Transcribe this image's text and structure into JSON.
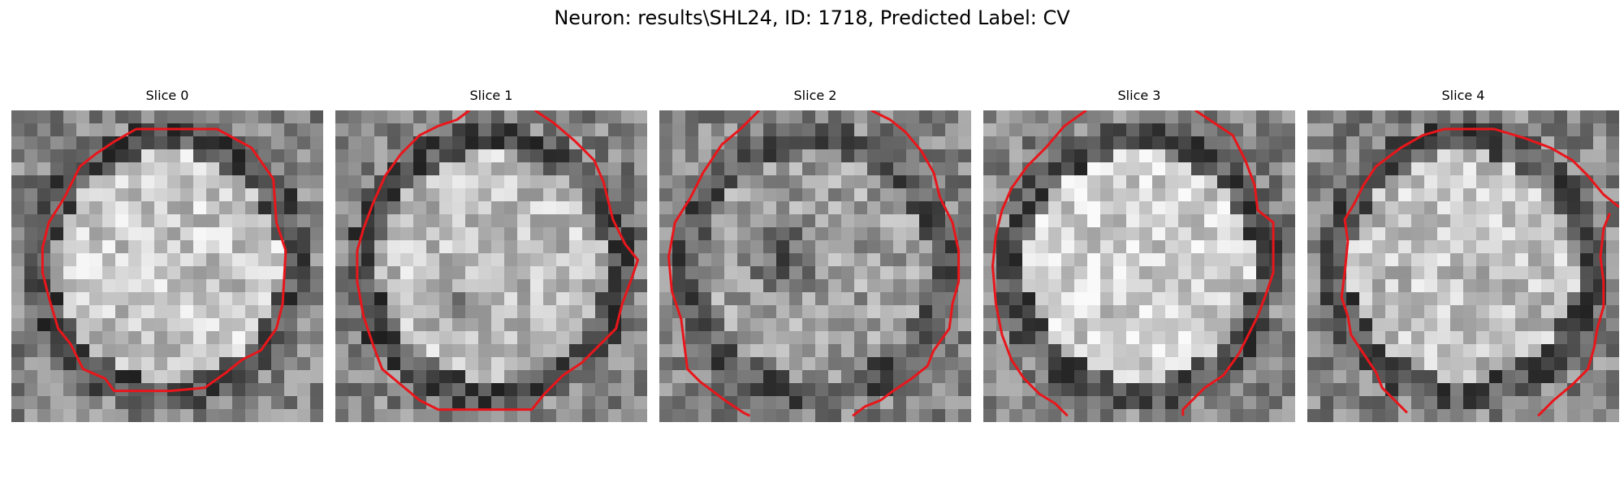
{
  "figure": {
    "title": "Neuron: results\\SHL24, ID: 1718, Predicted Label: CV",
    "contour_color": "#e8161b",
    "panels": [
      {
        "title": "Slice 0",
        "seed": 11,
        "center_brightness": 0.78,
        "ring_darkness": 0.55,
        "dark_blob": null,
        "contour": [
          [
            0.4,
            0.06
          ],
          [
            0.66,
            0.06
          ],
          [
            0.77,
            0.12
          ],
          [
            0.84,
            0.22
          ],
          [
            0.85,
            0.36
          ],
          [
            0.88,
            0.45
          ],
          [
            0.87,
            0.62
          ],
          [
            0.85,
            0.7
          ],
          [
            0.8,
            0.77
          ],
          [
            0.74,
            0.8
          ],
          [
            0.69,
            0.84
          ],
          [
            0.62,
            0.89
          ],
          [
            0.51,
            0.9
          ],
          [
            0.33,
            0.9
          ],
          [
            0.3,
            0.86
          ],
          [
            0.23,
            0.83
          ],
          [
            0.19,
            0.75
          ],
          [
            0.15,
            0.7
          ],
          [
            0.12,
            0.6
          ],
          [
            0.1,
            0.52
          ],
          [
            0.1,
            0.44
          ],
          [
            0.12,
            0.36
          ],
          [
            0.17,
            0.28
          ],
          [
            0.22,
            0.18
          ],
          [
            0.27,
            0.14
          ],
          [
            0.33,
            0.1
          ],
          [
            0.4,
            0.06
          ]
        ],
        "closed": true
      },
      {
        "title": "Slice 1",
        "seed": 23,
        "center_brightness": 0.75,
        "ring_darkness": 0.55,
        "dark_blob": [
          0.4,
          0.63,
          0.11
        ],
        "contour": [
          [
            0.64,
            0.0
          ],
          [
            0.7,
            0.04
          ],
          [
            0.77,
            0.1
          ],
          [
            0.83,
            0.16
          ],
          [
            0.86,
            0.23
          ],
          [
            0.89,
            0.35
          ],
          [
            0.93,
            0.43
          ],
          [
            0.97,
            0.48
          ],
          [
            0.95,
            0.54
          ],
          [
            0.92,
            0.62
          ],
          [
            0.9,
            0.7
          ],
          [
            0.84,
            0.76
          ],
          [
            0.79,
            0.81
          ],
          [
            0.73,
            0.85
          ],
          [
            0.67,
            0.91
          ],
          [
            0.63,
            0.96
          ],
          [
            0.57,
            0.96
          ],
          [
            0.33,
            0.96
          ],
          [
            0.27,
            0.93
          ],
          [
            0.21,
            0.88
          ],
          [
            0.15,
            0.83
          ],
          [
            0.12,
            0.75
          ],
          [
            0.09,
            0.66
          ],
          [
            0.07,
            0.55
          ],
          [
            0.07,
            0.45
          ],
          [
            0.09,
            0.38
          ],
          [
            0.12,
            0.3
          ],
          [
            0.16,
            0.21
          ],
          [
            0.21,
            0.14
          ],
          [
            0.27,
            0.08
          ],
          [
            0.33,
            0.05
          ],
          [
            0.39,
            0.03
          ],
          [
            0.43,
            0.0
          ]
        ],
        "closed": false
      },
      {
        "title": "Slice 2",
        "seed": 37,
        "center_brightness": 0.62,
        "ring_darkness": 0.45,
        "dark_blob": [
          0.4,
          0.47,
          0.15
        ],
        "contour": [
          [
            [
              0.32,
              0.0
            ],
            [
              0.26,
              0.06
            ],
            [
              0.2,
              0.11
            ],
            [
              0.14,
              0.2
            ],
            [
              0.1,
              0.28
            ],
            [
              0.05,
              0.36
            ],
            [
              0.03,
              0.47
            ],
            [
              0.04,
              0.58
            ],
            [
              0.07,
              0.67
            ],
            [
              0.08,
              0.75
            ],
            [
              0.09,
              0.83
            ],
            [
              0.13,
              0.87
            ],
            [
              0.17,
              0.9
            ],
            [
              0.21,
              0.93
            ],
            [
              0.27,
              0.97
            ],
            [
              0.29,
              0.98
            ]
          ],
          [
            [
              0.68,
              0.0
            ],
            [
              0.74,
              0.03
            ],
            [
              0.79,
              0.07
            ],
            [
              0.84,
              0.13
            ],
            [
              0.88,
              0.2
            ],
            [
              0.9,
              0.28
            ],
            [
              0.94,
              0.36
            ],
            [
              0.96,
              0.45
            ],
            [
              0.96,
              0.55
            ],
            [
              0.94,
              0.62
            ],
            [
              0.93,
              0.7
            ],
            [
              0.88,
              0.77
            ],
            [
              0.86,
              0.82
            ],
            [
              0.81,
              0.86
            ],
            [
              0.75,
              0.9
            ],
            [
              0.71,
              0.93
            ],
            [
              0.66,
              0.95
            ],
            [
              0.62,
              0.98
            ]
          ]
        ],
        "closed": false
      },
      {
        "title": "Slice 3",
        "seed": 51,
        "center_brightness": 0.82,
        "ring_darkness": 0.5,
        "dark_blob": null,
        "contour": [
          [
            [
              0.33,
              0.0
            ],
            [
              0.26,
              0.05
            ],
            [
              0.2,
              0.12
            ],
            [
              0.14,
              0.18
            ],
            [
              0.09,
              0.25
            ],
            [
              0.06,
              0.32
            ],
            [
              0.04,
              0.4
            ],
            [
              0.03,
              0.5
            ],
            [
              0.04,
              0.62
            ],
            [
              0.06,
              0.72
            ],
            [
              0.09,
              0.8
            ],
            [
              0.13,
              0.86
            ],
            [
              0.18,
              0.91
            ],
            [
              0.23,
              0.94
            ],
            [
              0.27,
              0.98
            ]
          ],
          [
            [
              0.68,
              0.0
            ],
            [
              0.74,
              0.04
            ],
            [
              0.8,
              0.08
            ],
            [
              0.84,
              0.16
            ],
            [
              0.87,
              0.24
            ],
            [
              0.88,
              0.32
            ],
            [
              0.93,
              0.36
            ],
            [
              0.93,
              0.52
            ],
            [
              0.91,
              0.58
            ],
            [
              0.88,
              0.66
            ],
            [
              0.85,
              0.72
            ],
            [
              0.82,
              0.78
            ],
            [
              0.77,
              0.85
            ],
            [
              0.71,
              0.89
            ],
            [
              0.67,
              0.93
            ],
            [
              0.64,
              0.96
            ],
            [
              0.64,
              0.98
            ]
          ]
        ],
        "closed": false
      },
      {
        "title": "Slice 4",
        "seed": 67,
        "center_brightness": 0.76,
        "ring_darkness": 0.5,
        "dark_blob": null,
        "contour": [
          [
            [
              1.0,
              0.31
            ],
            [
              0.95,
              0.27
            ],
            [
              0.9,
              0.21
            ],
            [
              0.85,
              0.16
            ],
            [
              0.78,
              0.12
            ],
            [
              0.7,
              0.09
            ],
            [
              0.6,
              0.06
            ],
            [
              0.44,
              0.06
            ],
            [
              0.37,
              0.08
            ],
            [
              0.3,
              0.12
            ],
            [
              0.22,
              0.18
            ],
            [
              0.18,
              0.24
            ],
            [
              0.15,
              0.3
            ],
            [
              0.12,
              0.35
            ],
            [
              0.13,
              0.42
            ],
            [
              0.12,
              0.52
            ],
            [
              0.11,
              0.6
            ],
            [
              0.13,
              0.66
            ],
            [
              0.14,
              0.72
            ],
            [
              0.18,
              0.78
            ],
            [
              0.22,
              0.84
            ],
            [
              0.24,
              0.89
            ],
            [
              0.28,
              0.93
            ],
            [
              0.32,
              0.97
            ]
          ],
          [
            [
              0.74,
              0.98
            ],
            [
              0.79,
              0.93
            ],
            [
              0.85,
              0.88
            ],
            [
              0.9,
              0.83
            ],
            [
              0.92,
              0.76
            ],
            [
              0.93,
              0.7
            ],
            [
              0.95,
              0.63
            ],
            [
              0.95,
              0.55
            ],
            [
              0.94,
              0.47
            ],
            [
              0.95,
              0.38
            ],
            [
              0.97,
              0.33
            ]
          ]
        ],
        "closed": false
      }
    ]
  }
}
